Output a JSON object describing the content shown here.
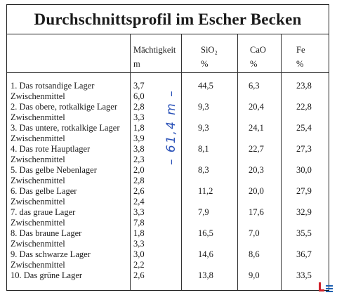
{
  "title": "Durchschnittsprofil im Escher Becken",
  "headers": {
    "thickness": "Mächtigkeit",
    "thickness_unit": "m",
    "sio2": "SiO₂",
    "cao": "CaO",
    "fe": "Fe",
    "percent": "%"
  },
  "rows": [
    {
      "name": "1. Das rotsandige Lager",
      "m": "3,7",
      "sio2": "44,5",
      "cao": "6,3",
      "fe": "23,8"
    },
    {
      "name": "Zwischenmittel",
      "m": "6,0",
      "sio2": "",
      "cao": "",
      "fe": ""
    },
    {
      "name": "2. Das obere, rotkalkige Lager",
      "m": "2,8",
      "sio2": "9,3",
      "cao": "20,4",
      "fe": "22,8"
    },
    {
      "name": "Zwischenmittel",
      "m": "3,3",
      "sio2": "",
      "cao": "",
      "fe": ""
    },
    {
      "name": "3. Das untere, rotkalkige Lager",
      "m": "1,8",
      "sio2": "9,3",
      "cao": "24,1",
      "fe": "25,4"
    },
    {
      "name": "Zwischenmittel",
      "m": "3,9",
      "sio2": "",
      "cao": "",
      "fe": ""
    },
    {
      "name": "4. Das rote Hauptlager",
      "m": "3,8",
      "sio2": "8,1",
      "cao": "22,7",
      "fe": "27,3"
    },
    {
      "name": "Zwischenmittel",
      "m": "2,3",
      "sio2": "",
      "cao": "",
      "fe": ""
    },
    {
      "name": "5. Das gelbe Nebenlager",
      "m": "2,0",
      "sio2": "8,3",
      "cao": "20,3",
      "fe": "30,0"
    },
    {
      "name": "Zwischenmittel",
      "m": "2,8",
      "sio2": "",
      "cao": "",
      "fe": ""
    },
    {
      "name": "6. Das gelbe Lager",
      "m": "2,6",
      "sio2": "11,2",
      "cao": "20,0",
      "fe": "27,9"
    },
    {
      "name": "Zwischenmittel",
      "m": "2,4",
      "sio2": "",
      "cao": "",
      "fe": ""
    },
    {
      "name": "7. das graue Lager",
      "m": "3,3",
      "sio2": "7,9",
      "cao": "17,6",
      "fe": "32,9"
    },
    {
      "name": "Zwischenmittel",
      "m": "7,8",
      "sio2": "",
      "cao": "",
      "fe": ""
    },
    {
      "name": "8. Das braune Lager",
      "m": "1,8",
      "sio2": "16,5",
      "cao": "7,0",
      "fe": "35,5"
    },
    {
      "name": "Zwischenmittel",
      "m": "3,3",
      "sio2": "",
      "cao": "",
      "fe": ""
    },
    {
      "name": "9. Das schwarze Lager",
      "m": "3,0",
      "sio2": "14,6",
      "cao": "8,6",
      "fe": "36,7"
    },
    {
      "name": "Zwischenmittel",
      "m": "2,2",
      "sio2": "",
      "cao": "",
      "fe": ""
    },
    {
      "name": "10. Das grüne Lager",
      "m": "2,6",
      "sio2": "13,8",
      "cao": "9,0",
      "fe": "33,5"
    }
  ],
  "handwritten_note": "– 61,4 m –",
  "colors": {
    "note": "#2b52b8",
    "logo_red": "#d0202a",
    "logo_blue": "#1e5fb0"
  },
  "icons": {
    "logo": "publisher-logo-icon"
  }
}
